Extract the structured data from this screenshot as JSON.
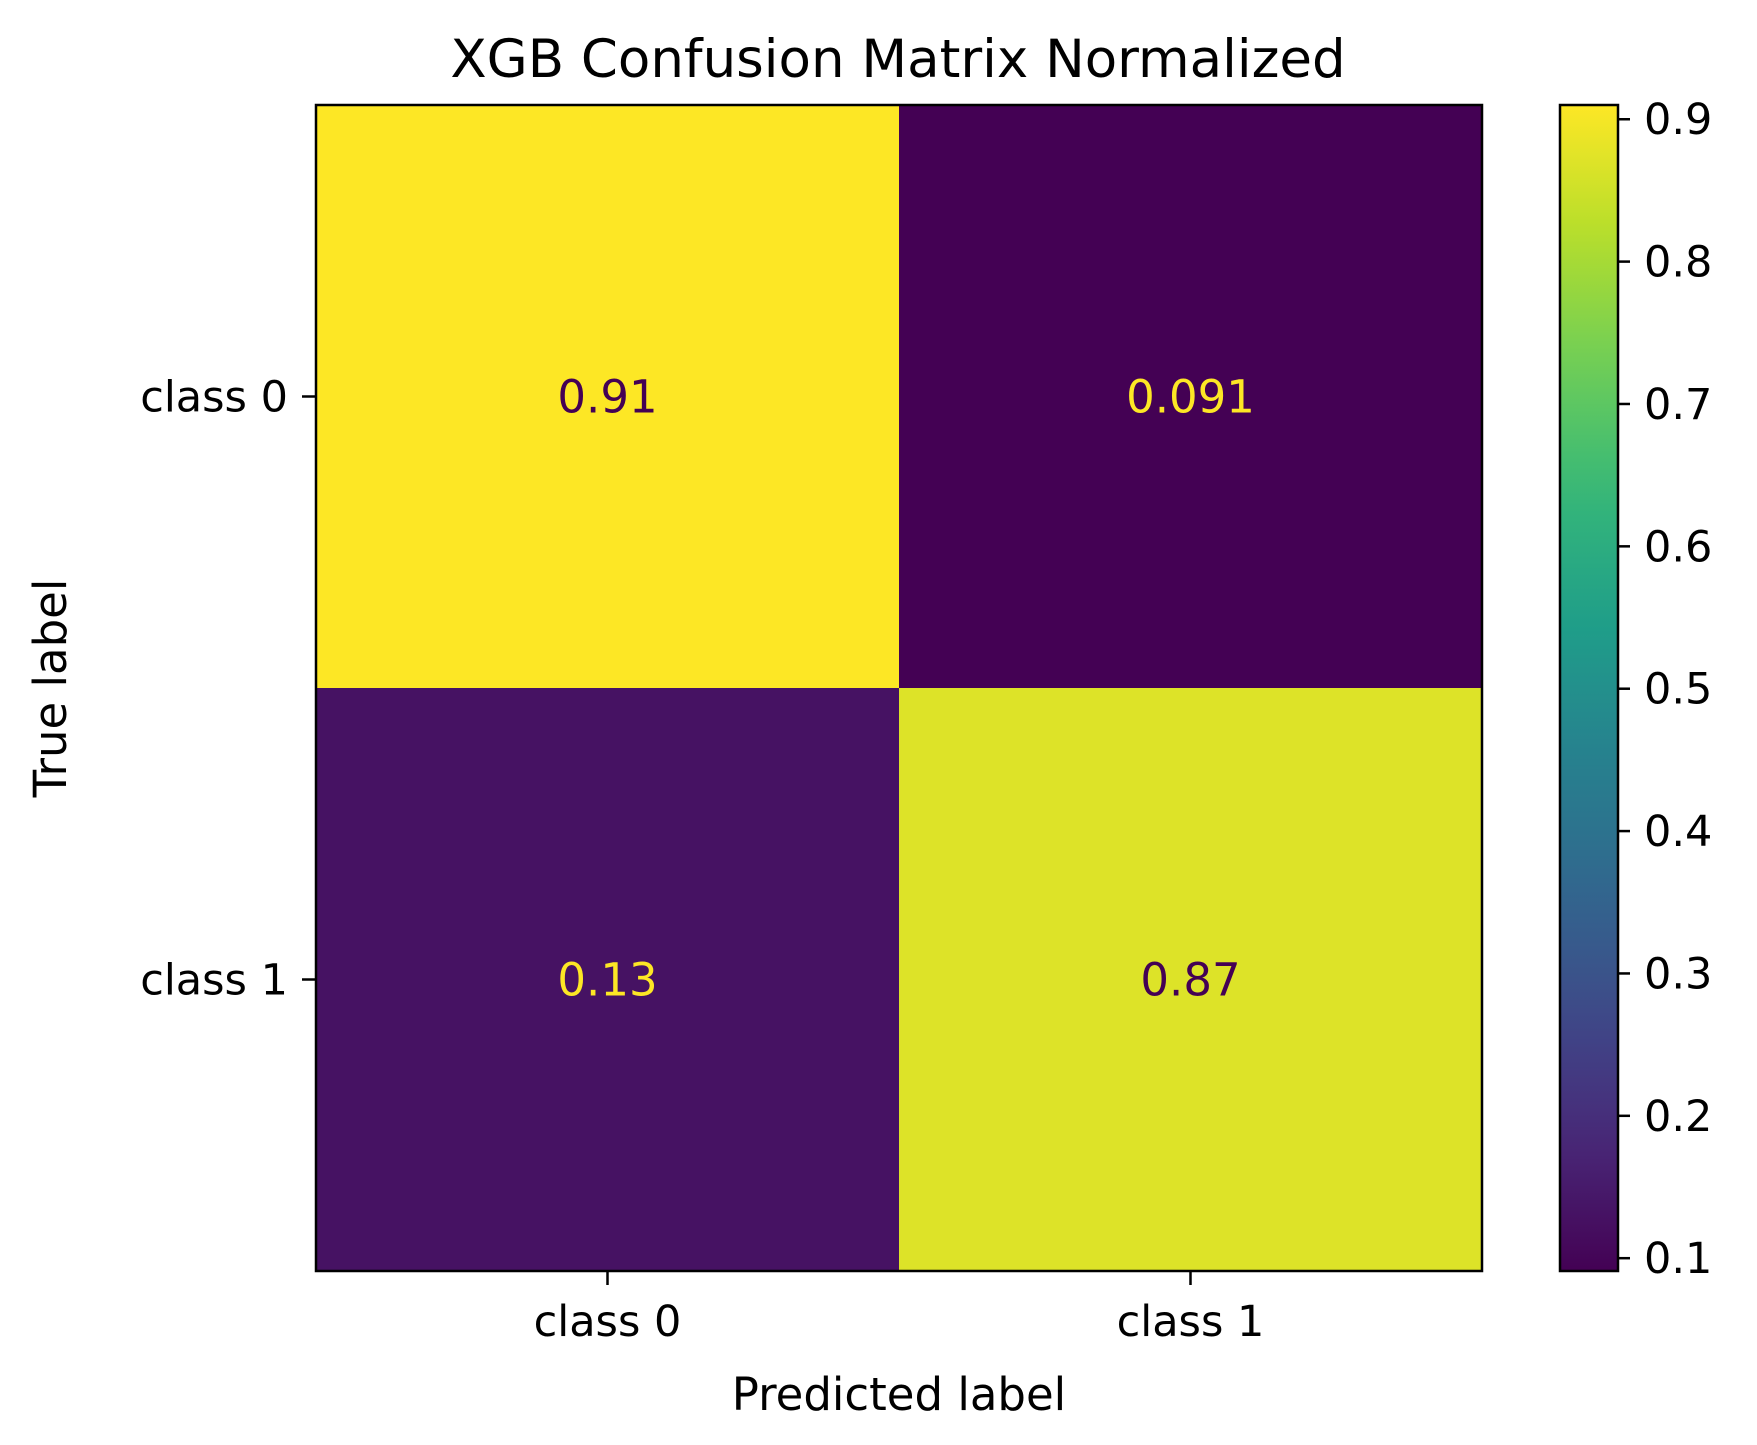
{
  "chart_data": {
    "type": "heatmap",
    "title": "XGB Confusion Matrix Normalized",
    "xlabel": "Predicted label",
    "ylabel": "True label",
    "x_categories": [
      "class 0",
      "class 1"
    ],
    "y_categories": [
      "class 0",
      "class 1"
    ],
    "values": [
      [
        0.91,
        0.091
      ],
      [
        0.13,
        0.87
      ]
    ],
    "value_labels": [
      [
        "0.91",
        "0.091"
      ],
      [
        "0.13",
        "0.87"
      ]
    ],
    "colormap": "viridis",
    "colorbar": {
      "range": [
        0.091,
        0.91
      ],
      "ticks": [
        0.1,
        0.2,
        0.3,
        0.4,
        0.5,
        0.6,
        0.7,
        0.8,
        0.9
      ],
      "tick_labels": [
        "0.1",
        "0.2",
        "0.3",
        "0.4",
        "0.5",
        "0.6",
        "0.7",
        "0.8",
        "0.9"
      ],
      "position": "right"
    },
    "colors": {
      "low": "#440154",
      "high": "#fde725",
      "text_on_light": "#440154",
      "text_on_dark": "#fde725"
    },
    "grid": false
  }
}
